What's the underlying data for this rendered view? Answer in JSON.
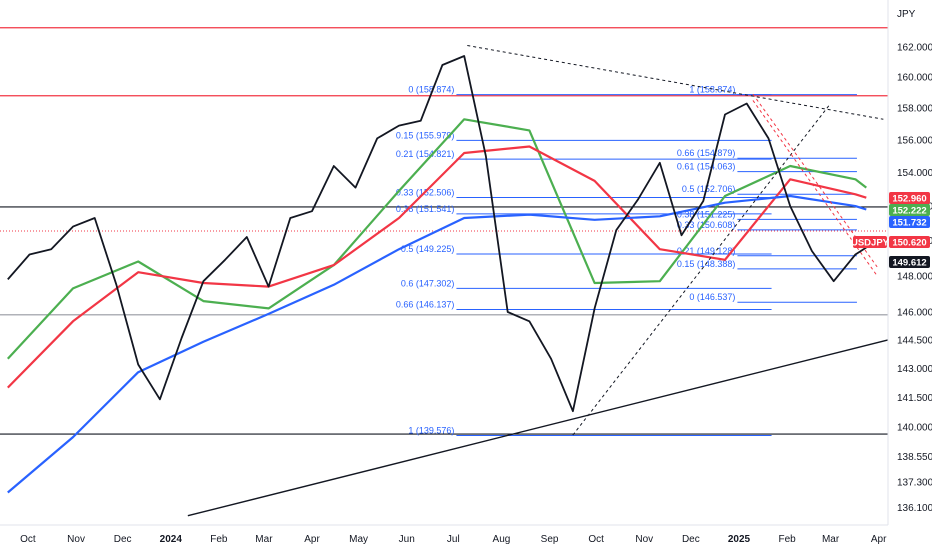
{
  "chart_data": {
    "type": "line",
    "currency_label": "JPY",
    "symbol": "USDJPY",
    "x_ticks": [
      "Oct",
      "Nov",
      "Dec",
      "2024",
      "Feb",
      "Mar",
      "Apr",
      "May",
      "Jun",
      "Jul",
      "Aug",
      "Sep",
      "Oct",
      "Nov",
      "Dec",
      "2025",
      "Feb",
      "Mar",
      "Apr"
    ],
    "y_ticks": [
      136.1,
      137.3,
      138.55,
      140.0,
      141.5,
      143.0,
      144.5,
      146.0,
      148.0,
      150.0,
      152.0,
      154.0,
      156.0,
      158.0,
      160.0,
      162.0
    ],
    "ylim": [
      135.5,
      164.0
    ],
    "price_series": {
      "name": "",
      "x": [
        "2023-09-18",
        "2023-10-02",
        "2023-10-16",
        "2023-10-30",
        "2023-11-13",
        "2023-11-27",
        "2023-12-11",
        "2023-12-25",
        "2024-01-08",
        "2024-01-22",
        "2024-02-05",
        "2024-02-19",
        "2024-03-04",
        "2024-03-18",
        "2024-04-01",
        "2024-04-15",
        "2024-04-29",
        "2024-05-13",
        "2024-05-27",
        "2024-06-10",
        "2024-06-24",
        "2024-07-08",
        "2024-07-22",
        "2024-08-05",
        "2024-08-19",
        "2024-09-02",
        "2024-09-16",
        "2024-09-30",
        "2024-10-14",
        "2024-10-28",
        "2024-11-11",
        "2024-11-25",
        "2024-12-09",
        "2024-12-23",
        "2025-01-06",
        "2025-01-20",
        "2025-02-03",
        "2025-02-17",
        "2025-03-03",
        "2025-03-17",
        "2025-03-24"
      ],
      "y": [
        147.8,
        149.2,
        149.5,
        150.8,
        151.3,
        147.5,
        143.2,
        141.4,
        144.6,
        147.7,
        148.9,
        150.2,
        147.4,
        151.3,
        151.7,
        154.4,
        153.1,
        156.1,
        156.9,
        157.2,
        160.8,
        161.4,
        155.0,
        146.0,
        145.5,
        143.5,
        140.8,
        146.2,
        150.6,
        152.4,
        154.6,
        150.3,
        152.3,
        157.6,
        158.3,
        156.1,
        152.0,
        149.4,
        147.7,
        149.2,
        149.6
      ]
    },
    "moving_averages": [
      {
        "name": "",
        "color": "#4caf50",
        "x": [
          "2023-09-18",
          "2023-10-30",
          "2023-12-11",
          "2024-01-22",
          "2024-03-04",
          "2024-04-15",
          "2024-05-27",
          "2024-07-08",
          "2024-08-19",
          "2024-09-30",
          "2024-11-11",
          "2024-12-23",
          "2025-02-03",
          "2025-03-17",
          "2025-03-24"
        ],
        "y": [
          143.5,
          147.3,
          148.8,
          146.6,
          146.2,
          148.6,
          152.9,
          157.3,
          156.6,
          147.6,
          147.7,
          152.6,
          154.4,
          153.6,
          153.1
        ]
      },
      {
        "name": "",
        "color": "#f23645",
        "x": [
          "2023-09-18",
          "2023-10-30",
          "2023-12-11",
          "2024-01-22",
          "2024-03-04",
          "2024-04-15",
          "2024-05-27",
          "2024-07-08",
          "2024-08-19",
          "2024-09-30",
          "2024-11-11",
          "2024-12-23",
          "2025-02-03",
          "2025-03-17",
          "2025-03-24"
        ],
        "y": [
          142.0,
          145.5,
          148.2,
          147.6,
          147.4,
          148.6,
          151.3,
          155.2,
          155.6,
          153.5,
          149.5,
          148.9,
          153.6,
          152.7,
          152.5
        ]
      },
      {
        "name": "",
        "color": "#2962ff",
        "x": [
          "2023-09-18",
          "2023-10-30",
          "2023-12-11",
          "2024-01-22",
          "2024-03-04",
          "2024-04-15",
          "2024-05-27",
          "2024-07-08",
          "2024-08-19",
          "2024-09-30",
          "2024-11-11",
          "2024-12-23",
          "2025-02-03",
          "2025-03-17",
          "2025-03-24"
        ],
        "y": [
          136.8,
          139.5,
          142.8,
          144.4,
          145.9,
          147.5,
          149.5,
          151.3,
          151.5,
          151.2,
          151.4,
          152.2,
          152.6,
          152.0,
          151.8
        ]
      }
    ],
    "horizontal_levels": [
      {
        "value": 163.3,
        "color": "#f23645"
      },
      {
        "value": 158.8,
        "color": "#f23645"
      },
      {
        "value": 151.95,
        "color": "#131722"
      },
      {
        "value": 150.55,
        "color": "#f23645",
        "dashed": true
      },
      {
        "value": 145.85,
        "color": "#9598a1"
      },
      {
        "value": 139.65,
        "color": "#131722"
      }
    ],
    "trend_lines": [
      {
        "color": "#131722",
        "dashed": false,
        "x": [
          "2024-01-12",
          "2025-04-07"
        ],
        "y": [
          135.7,
          144.5
        ]
      },
      {
        "color": "#131722",
        "dashed": true,
        "x": [
          "2024-07-10",
          "2025-04-04"
        ],
        "y": [
          162.1,
          157.3
        ]
      },
      {
        "color": "#131722",
        "dashed": true,
        "x": [
          "2024-09-16",
          "2025-03-01"
        ],
        "y": [
          139.6,
          158.3
        ]
      },
      {
        "color": "#f23645",
        "dashed": true,
        "x": [
          "2025-01-10",
          "2025-03-31"
        ],
        "y": [
          158.9,
          148.5
        ]
      },
      {
        "color": "#f23645",
        "dashed": true,
        "x": [
          "2025-01-10",
          "2025-03-31"
        ],
        "y": [
          158.5,
          148.0
        ]
      }
    ],
    "fib_retracements": [
      {
        "x_start": "2024-07-03",
        "x_end": "2025-01-22",
        "levels": [
          {
            "ratio": "0",
            "price": "158.874",
            "value": 158.874
          },
          {
            "ratio": "0.15",
            "price": "155.979",
            "value": 155.979
          },
          {
            "ratio": "0.21",
            "price": "154.821",
            "value": 154.821
          },
          {
            "ratio": "0.33",
            "price": "152.506",
            "value": 152.506
          },
          {
            "ratio": "0.38",
            "price": "151.541",
            "value": 151.541
          },
          {
            "ratio": "0.5",
            "price": "149.225",
            "value": 149.225
          },
          {
            "ratio": "0.6",
            "price": "147.302",
            "value": 147.302
          },
          {
            "ratio": "0.66",
            "price": "146.137",
            "value": 146.137
          },
          {
            "ratio": "1",
            "price": "139.576",
            "value": 139.576
          }
        ]
      },
      {
        "x_start": "2024-12-31",
        "x_end": "2025-03-18",
        "levels": [
          {
            "ratio": "1",
            "price": "158.874",
            "value": 158.874
          },
          {
            "ratio": "0.66",
            "price": "154.879",
            "value": 154.879
          },
          {
            "ratio": "0.61",
            "price": "154.063",
            "value": 154.063
          },
          {
            "ratio": "0.5",
            "price": "152.706",
            "value": 152.706
          },
          {
            "ratio": "0.38",
            "price": "151.225",
            "value": 151.225
          },
          {
            "ratio": "0.33",
            "price": "150.608",
            "value": 150.608
          },
          {
            "ratio": "0.21",
            "price": "149.128",
            "value": 149.128
          },
          {
            "ratio": "0.15",
            "price": "148.388",
            "value": 148.388
          },
          {
            "ratio": "0",
            "price": "146.537",
            "value": 146.537
          }
        ]
      }
    ],
    "price_badges": [
      {
        "text": "152.960",
        "value": 152.96,
        "color": "#f23645"
      },
      {
        "text": "152.222",
        "value": 152.222,
        "color": "#4caf50"
      },
      {
        "text": "151.732",
        "value": 151.732,
        "color": "#2962ff"
      },
      {
        "text": "USDJPY",
        "value": 150.65,
        "color": "#f23645"
      },
      {
        "text": "150.620",
        "value": 150.62,
        "color": "#f23645"
      },
      {
        "text": "149.612",
        "value": 149.612,
        "color": "#131722"
      }
    ],
    "grid": false
  }
}
